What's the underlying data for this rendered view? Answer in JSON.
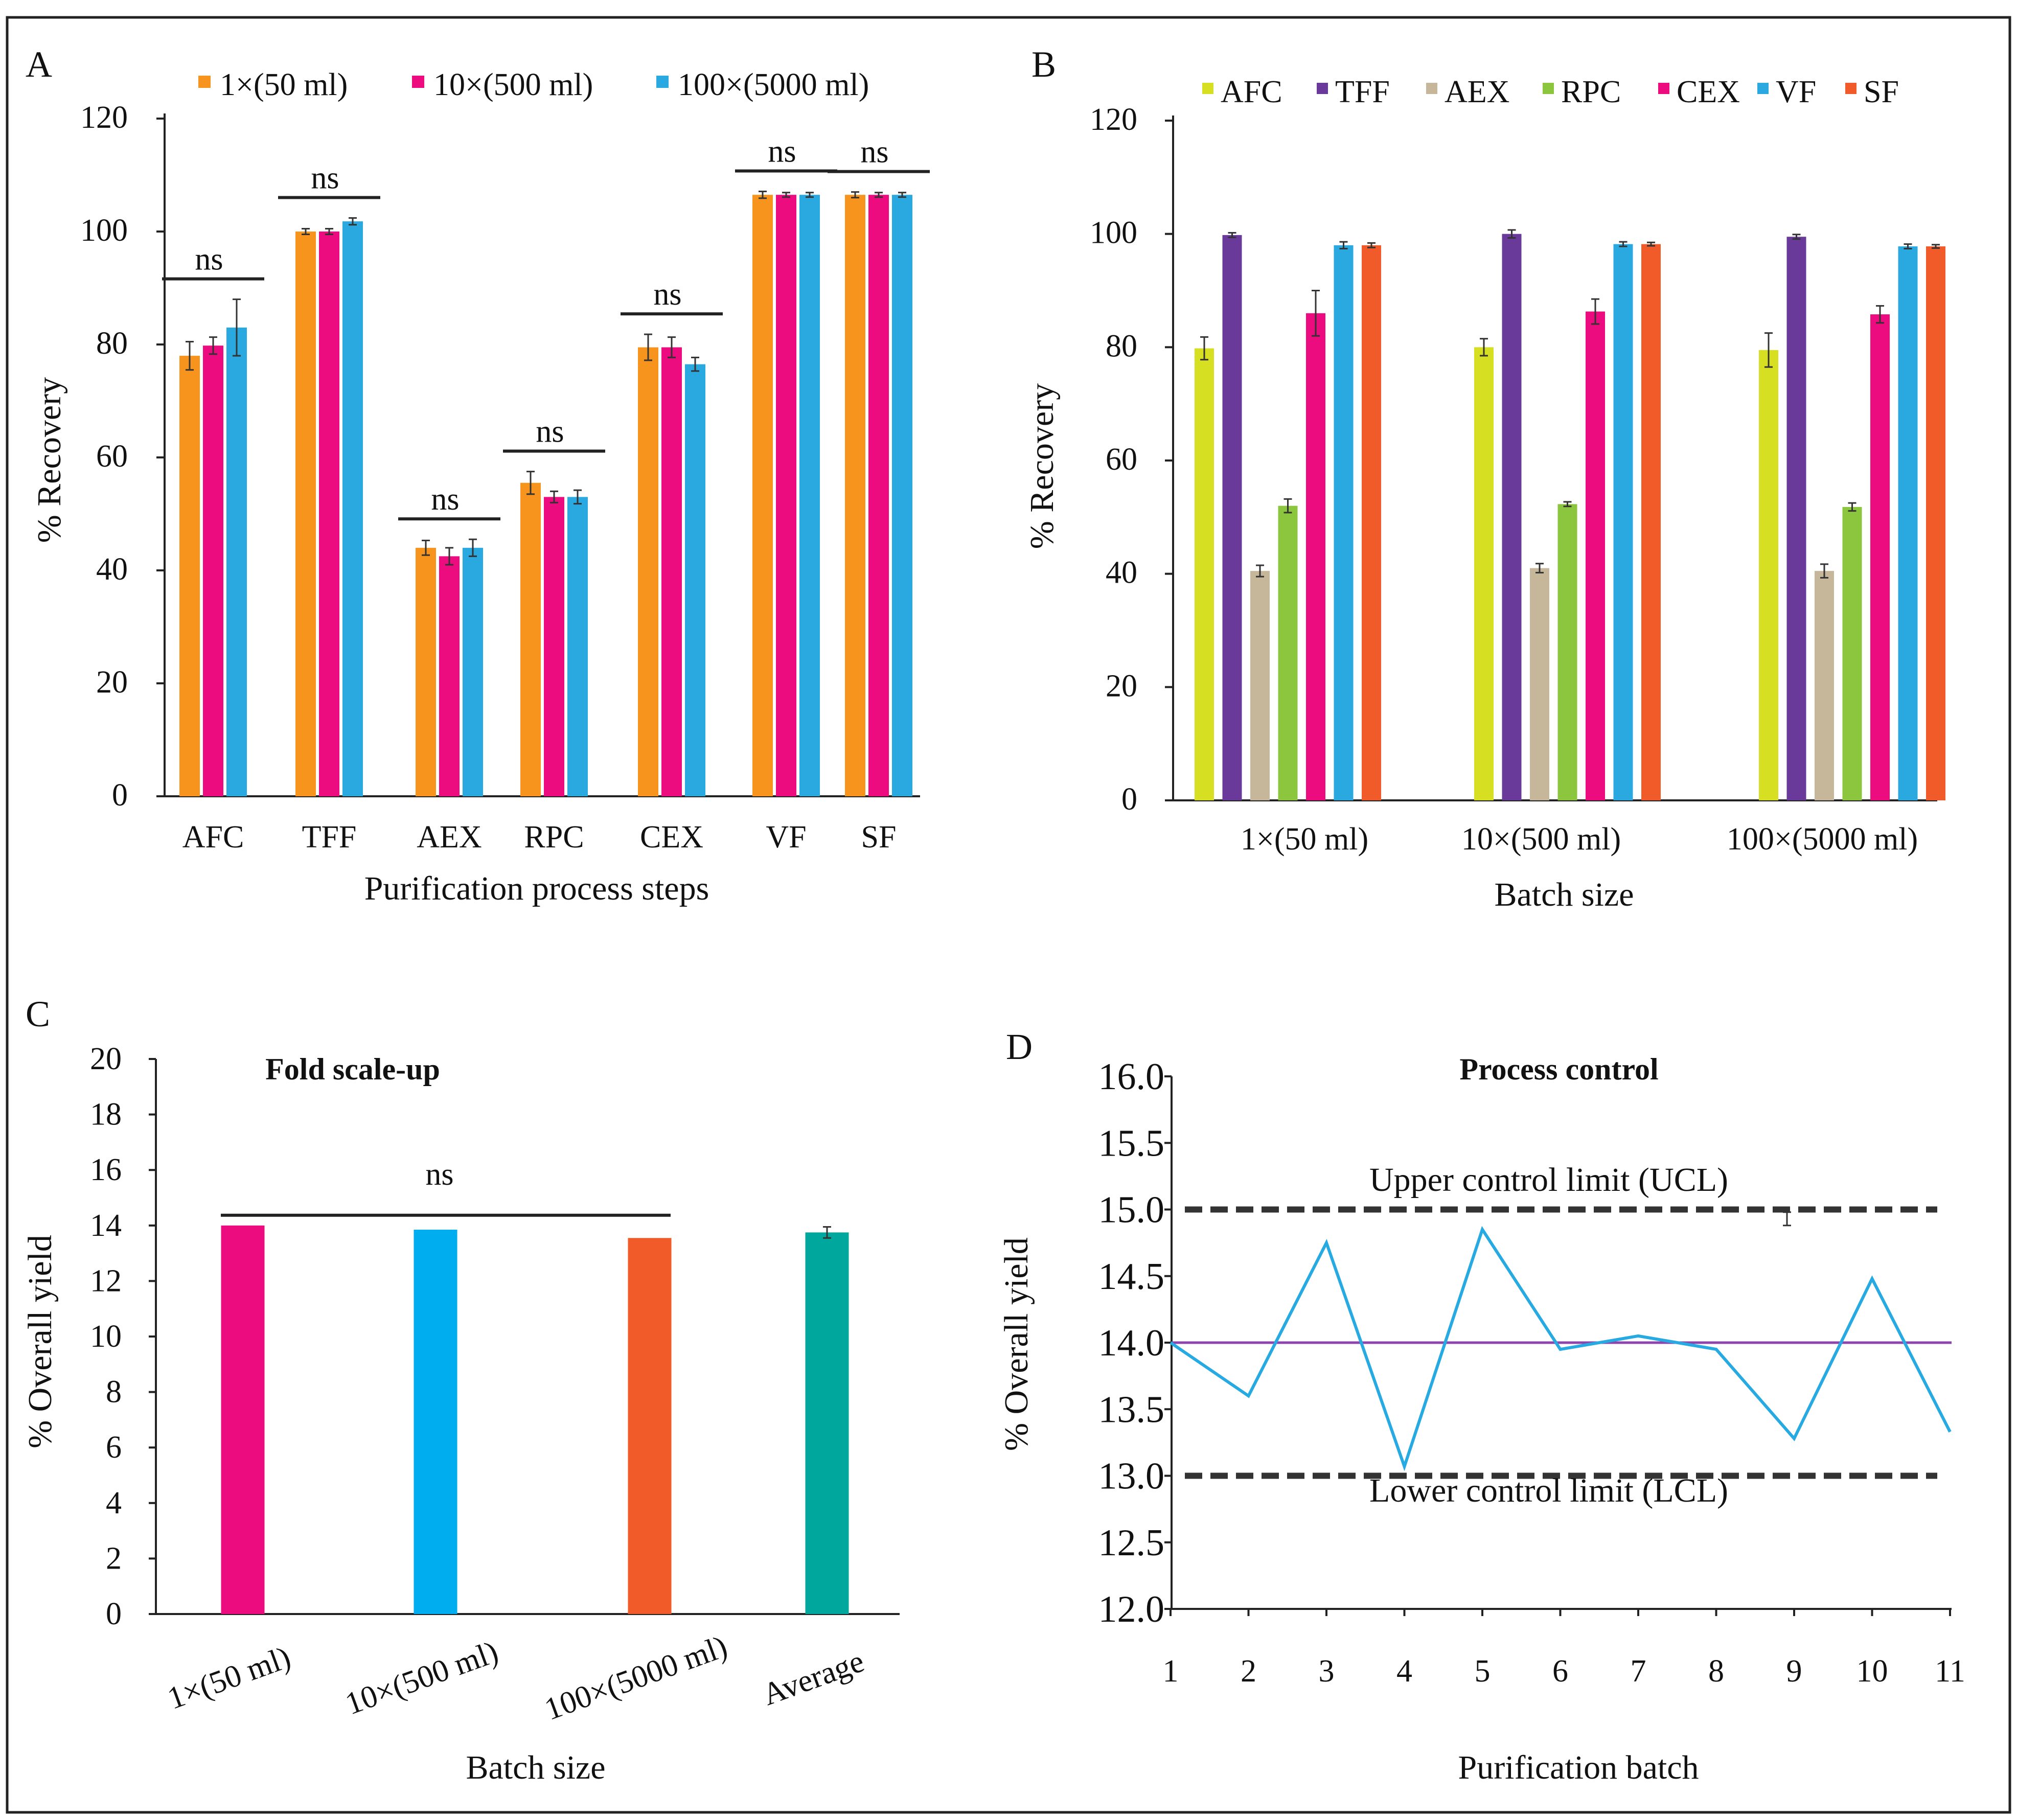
{
  "chart_data": [
    {
      "panel": "A",
      "type": "bar",
      "categories": [
        "AFC",
        "TFF",
        "AEX",
        "RPC",
        "CEX",
        "VF",
        "SF"
      ],
      "series": [
        {
          "name": "1×(50 ml)",
          "color": "#F7941D",
          "values": [
            78,
            100,
            44,
            55.5,
            79.5,
            106.5,
            106.5
          ],
          "errors": [
            2.5,
            0.5,
            1.3,
            2,
            2.3,
            0.6,
            0.5
          ]
        },
        {
          "name": "10×(500 ml)",
          "color": "#EC0C7F",
          "values": [
            79.8,
            100,
            42.5,
            53,
            79.5,
            106.5,
            106.5
          ],
          "errors": [
            1.5,
            0.5,
            1.5,
            1,
            1.8,
            0.4,
            0.4
          ]
        },
        {
          "name": "100×(5000 ml)",
          "color": "#29A9E0",
          "values": [
            83,
            101.8,
            44,
            53,
            76.5,
            106.5,
            106.5
          ],
          "errors": [
            5,
            0.6,
            1.5,
            1.2,
            1.2,
            0.4,
            0.4
          ]
        }
      ],
      "significance": [
        "ns",
        "ns",
        "ns",
        "ns",
        "ns",
        "ns",
        "ns"
      ],
      "ylim": [
        0,
        120
      ],
      "yticks": [
        0,
        20,
        40,
        60,
        80,
        100,
        120
      ],
      "xlabel": "Purification process steps",
      "ylabel": "% Recovery",
      "legend_position": "top"
    },
    {
      "panel": "B",
      "type": "bar",
      "categories": [
        "1×(50 ml)",
        "10×(500 ml)",
        "100×(5000 ml)"
      ],
      "series": [
        {
          "name": "AFC",
          "color": "#D7DF23",
          "values": [
            79.8,
            80,
            79.5
          ],
          "errors": [
            2,
            1.5,
            3
          ]
        },
        {
          "name": "TFF",
          "color": "#6A3A9B",
          "values": [
            99.8,
            100,
            99.5
          ],
          "errors": [
            0.4,
            0.7,
            0.4
          ]
        },
        {
          "name": "AEX",
          "color": "#C7B79A",
          "values": [
            40.5,
            41,
            40.5
          ],
          "errors": [
            1,
            0.8,
            1.2
          ]
        },
        {
          "name": "RPC",
          "color": "#8CC63F",
          "values": [
            52,
            52.3,
            51.8
          ],
          "errors": [
            1.2,
            0.4,
            0.7
          ]
        },
        {
          "name": "CEX",
          "color": "#EC0C7F",
          "values": [
            86,
            86.3,
            85.8
          ],
          "errors": [
            4,
            2.2,
            1.5
          ]
        },
        {
          "name": "VF",
          "color": "#29A9E0",
          "values": [
            98,
            98.2,
            97.8
          ],
          "errors": [
            0.6,
            0.4,
            0.4
          ]
        },
        {
          "name": "SF",
          "color": "#F15A29",
          "values": [
            98,
            98.2,
            97.8
          ],
          "errors": [
            0.4,
            0.3,
            0.3
          ]
        }
      ],
      "ylim": [
        0,
        120
      ],
      "yticks": [
        0,
        20,
        40,
        60,
        80,
        100,
        120
      ],
      "xlabel": "Batch size",
      "ylabel": "% Recovery",
      "legend_position": "top"
    },
    {
      "panel": "C",
      "type": "bar",
      "title": "Fold scale-up",
      "categories": [
        "1×(50 ml)",
        "10×(500 ml)",
        "100×(5000 ml)",
        "Average"
      ],
      "colors": [
        "#EC0C7F",
        "#00AEEF",
        "#F15A29",
        "#00A79D"
      ],
      "values": [
        14,
        13.85,
        13.55,
        13.75
      ],
      "errors": [
        0,
        0,
        0,
        0.2
      ],
      "significance": "ns",
      "ylim": [
        0,
        20
      ],
      "yticks": [
        0,
        2,
        4,
        6,
        8,
        10,
        12,
        14,
        16,
        18,
        20
      ],
      "xlabel": "Batch size",
      "ylabel": "% Overall yield"
    },
    {
      "panel": "D",
      "type": "line",
      "title": "Process control",
      "x": [
        1,
        2,
        3,
        4,
        5,
        6,
        7,
        8,
        9,
        10,
        11
      ],
      "values": [
        14.0,
        13.6,
        14.75,
        13.07,
        14.85,
        13.95,
        14.05,
        13.95,
        13.28,
        14.48,
        13.33
      ],
      "line_color": "#27AAE1",
      "mean": 14.0,
      "mean_color": "#8E44AD",
      "ucl": 15.0,
      "lcl": 13.0,
      "ucl_label": "Upper control limit (UCL)",
      "lcl_label": "Lower control limit (LCL)",
      "error_marker": {
        "x": 9,
        "y": 14.93,
        "err": 0.05
      },
      "ylim": [
        12.0,
        16.0
      ],
      "yticks": [
        "12.0",
        "12.5",
        "13.0",
        "13.5",
        "14.0",
        "14.5",
        "15.0",
        "15.5",
        "16.0"
      ],
      "xlabel": "Purification batch",
      "ylabel": "% Overall yield"
    }
  ]
}
